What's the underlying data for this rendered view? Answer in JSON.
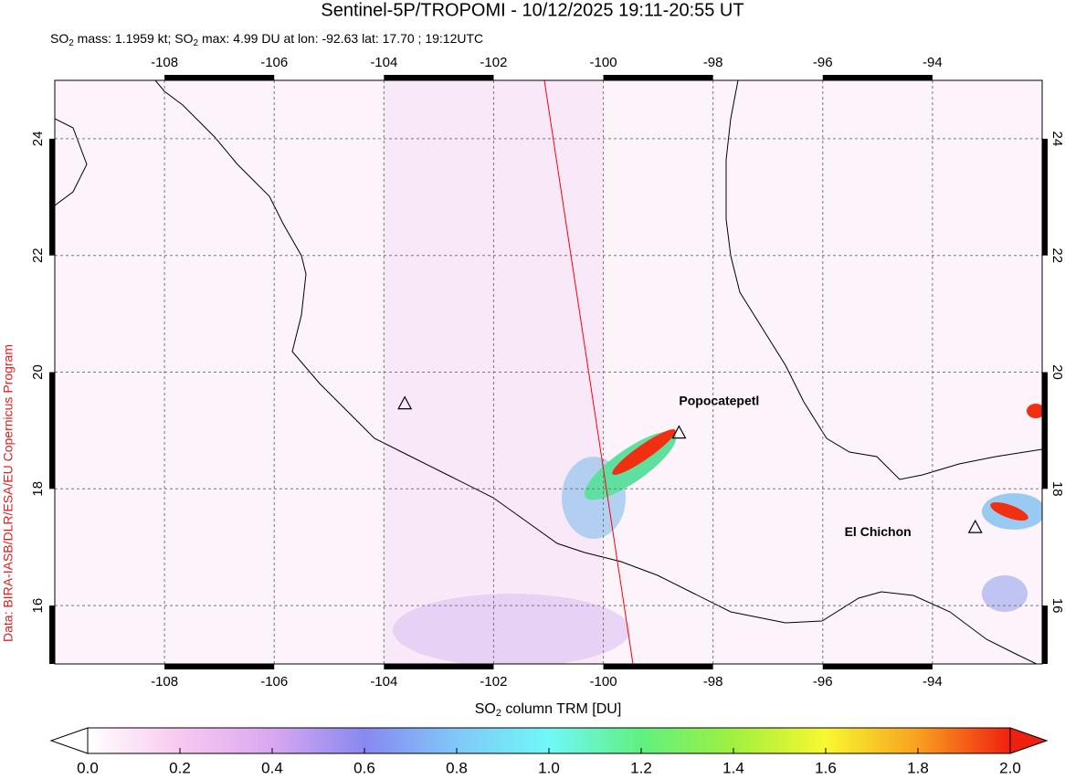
{
  "title": "Sentinel-5P/TROPOMI - 10/12/2025 19:11-20:55 UT",
  "subtitle": [
    "SO",
    "2",
    " mass: 1.1959 kt; SO",
    "2",
    " max: 4.99 DU at lon: -92.63 lat: 17.70 ; 19:12UTC"
  ],
  "credit": "Data: BIRA-IASB/DLR/ESA/EU Copernicus Program",
  "map": {
    "xlim": [
      -110,
      -92
    ],
    "ylim": [
      15,
      25
    ],
    "xticks": [
      -108,
      -106,
      -104,
      -102,
      -100,
      -98,
      -96,
      -94
    ],
    "yticks": [
      16,
      18,
      20,
      22,
      24
    ],
    "grid": true,
    "volcanoes": [
      {
        "name": "Popocatepetl",
        "lon": -98.62,
        "lat": 18.95
      },
      {
        "name": null,
        "lon": -103.62,
        "lat": 19.45
      },
      {
        "name": "El Chichon",
        "lon": -93.22,
        "lat": 17.33
      }
    ]
  },
  "colorbar": {
    "label": [
      "SO",
      "2",
      " column TRM [DU]"
    ],
    "lim": [
      0,
      2
    ],
    "ticks": [
      {
        "value": 0,
        "label": "0.0"
      },
      {
        "value": 0.2,
        "label": "0.2"
      },
      {
        "value": 0.4,
        "label": "0.4"
      },
      {
        "value": 0.6,
        "label": "0.6"
      },
      {
        "value": 0.8,
        "label": "0.8"
      },
      {
        "value": 1,
        "label": "1.0"
      },
      {
        "value": 1.2,
        "label": "1.2"
      },
      {
        "value": 1.4,
        "label": "1.4"
      },
      {
        "value": 1.6,
        "label": "1.6"
      },
      {
        "value": 1.8,
        "label": "1.8"
      },
      {
        "value": 2,
        "label": "2.0"
      }
    ],
    "colors": [
      "#ffffff",
      "#f8c8f0",
      "#d8a8f0",
      "#8888f0",
      "#80c8f8",
      "#70f8f8",
      "#60f080",
      "#a0f040",
      "#f8f830",
      "#f8a020",
      "#f02010"
    ]
  }
}
